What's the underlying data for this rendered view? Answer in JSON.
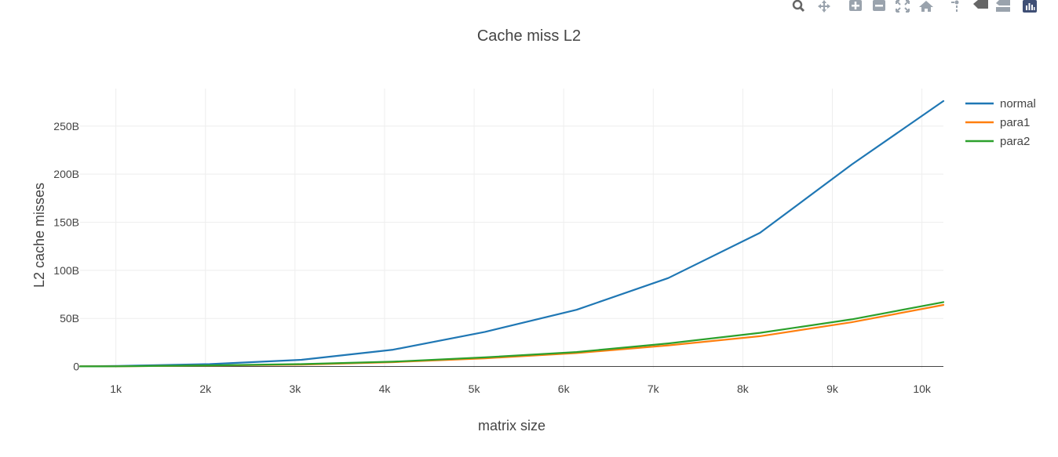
{
  "toolbar": {
    "buttons": [
      {
        "icon": "zoom-icon"
      },
      {
        "icon": "pan-icon"
      },
      {
        "icon": "zoom-in-icon"
      },
      {
        "icon": "zoom-out-icon"
      },
      {
        "icon": "autoscale-icon"
      },
      {
        "icon": "reset-axes-icon"
      },
      {
        "icon": "spike-lines-icon"
      },
      {
        "icon": "hover-closest-icon"
      },
      {
        "icon": "hover-compare-icon"
      },
      {
        "icon": "plotly-logo-icon"
      }
    ]
  },
  "colors": {
    "normal": "#1f77b4",
    "para1": "#ff7f0e",
    "para2": "#2ca02c",
    "grid": "#eeeeee",
    "zeroline": "#444444",
    "text": "#444444",
    "icon": "#9aa3ad",
    "logo": "#3f4f75"
  },
  "chart_data": {
    "type": "line",
    "title": "Cache miss L2",
    "xlabel": "matrix size",
    "ylabel": "L2 cache misses",
    "xlim": [
      600,
      10240
    ],
    "ylim": [
      -2,
      289
    ],
    "x_ticks": [
      1000,
      2000,
      3000,
      4000,
      5000,
      6000,
      7000,
      8000,
      9000,
      10000
    ],
    "x_tick_labels": [
      "1k",
      "2k",
      "3k",
      "4k",
      "5k",
      "6k",
      "7k",
      "8k",
      "9k",
      "10k"
    ],
    "y_ticks": [
      0,
      50,
      100,
      150,
      200,
      250
    ],
    "y_tick_labels": [
      "0",
      "50B",
      "100B",
      "150B",
      "200B",
      "250B"
    ],
    "y_unit": "billions",
    "grid": true,
    "legend_position": "top-right",
    "series": [
      {
        "name": "normal",
        "color": "#1f77b4",
        "x": [
          600,
          1024,
          2048,
          3072,
          4096,
          5120,
          6144,
          7168,
          8192,
          9216,
          10240
        ],
        "y": [
          0.2,
          0.5,
          2.5,
          7,
          17.5,
          36,
          59,
          92,
          139,
          210,
          276
        ]
      },
      {
        "name": "para1",
        "color": "#ff7f0e",
        "x": [
          600,
          1024,
          2048,
          3072,
          4096,
          5120,
          6144,
          7168,
          8192,
          9216,
          10240
        ],
        "y": [
          0.1,
          0.2,
          1,
          2,
          4.5,
          8.5,
          14,
          22,
          31.5,
          46,
          64
        ]
      },
      {
        "name": "para2",
        "color": "#2ca02c",
        "x": [
          600,
          1024,
          2048,
          3072,
          4096,
          5120,
          6144,
          7168,
          8192,
          9216,
          10240
        ],
        "y": [
          0.1,
          0.2,
          1.2,
          2.5,
          5,
          9.5,
          15,
          24,
          35,
          49,
          67
        ]
      }
    ]
  }
}
